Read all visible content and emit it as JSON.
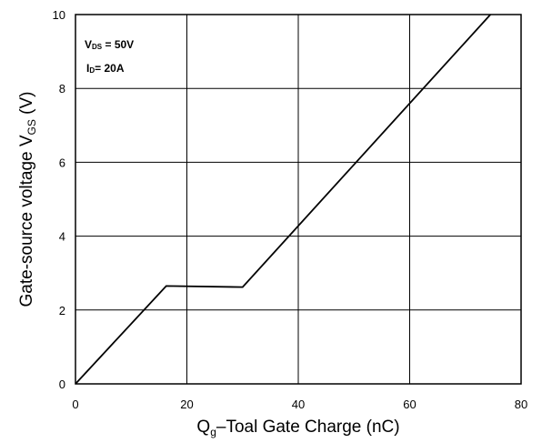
{
  "chart_data": {
    "type": "line",
    "xlabel_main": "Q",
    "xlabel_sub": "g",
    "xlabel_rest": "–Toal Gate Charge  (nC)",
    "ylabel_main": "Gate-source voltage V",
    "ylabel_sub": "GS",
    "ylabel_unit": " (V)",
    "xlim": [
      0,
      80
    ],
    "ylim": [
      0,
      10
    ],
    "xticks": [
      0,
      20,
      40,
      60,
      80
    ],
    "yticks": [
      0,
      2,
      4,
      6,
      8,
      10
    ],
    "grid": true,
    "annotations": {
      "vds_main": "V",
      "vds_sub": "DS",
      "vds_value": " = 50V",
      "id_main": "I",
      "id_sub": "D",
      "id_value": "= 20A"
    },
    "series": [
      {
        "x": [
          0,
          16.3,
          30,
          74.5
        ],
        "y": [
          0,
          2.65,
          2.62,
          10
        ]
      }
    ]
  }
}
